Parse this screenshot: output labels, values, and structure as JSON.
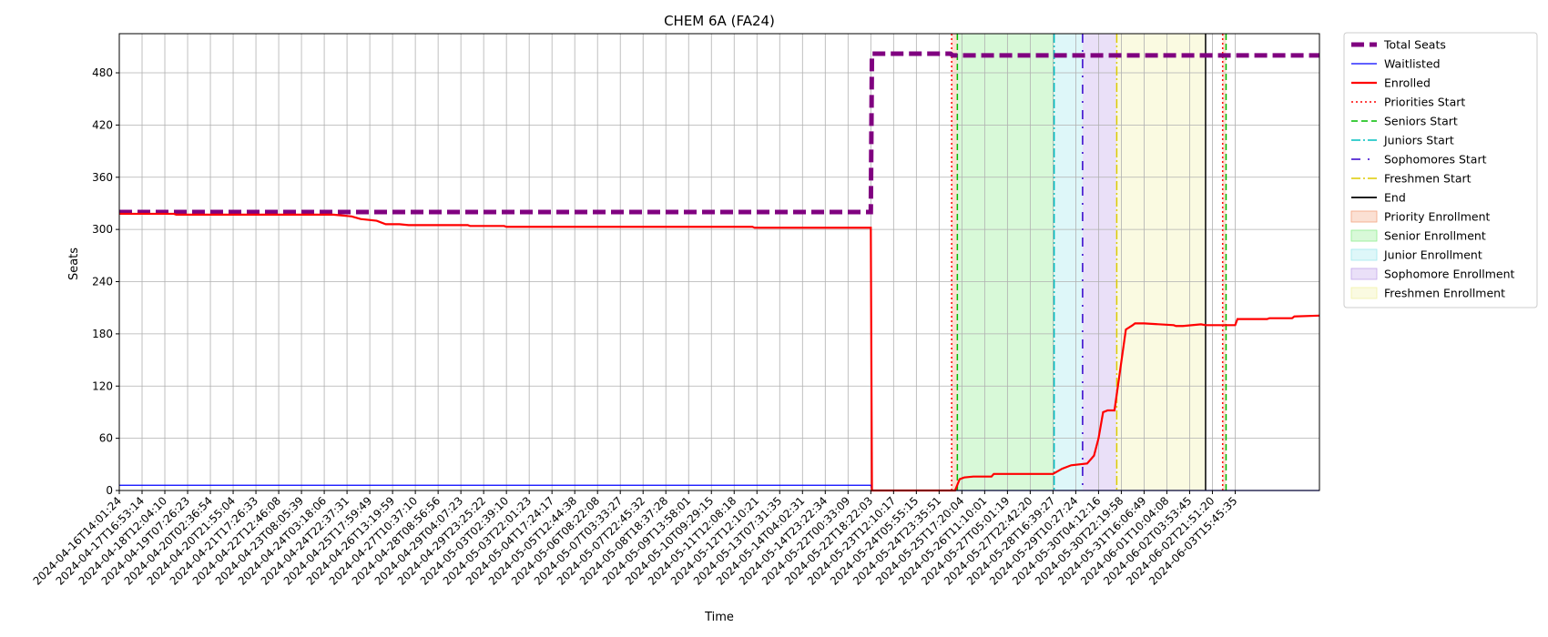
{
  "chart_data": {
    "type": "line",
    "title": "CHEM 6A (FA24)",
    "xlabel": "Time",
    "ylabel": "Seats",
    "ylim": [
      0,
      525
    ],
    "yticks": [
      0,
      60,
      120,
      180,
      240,
      300,
      360,
      420,
      480
    ],
    "grid": true,
    "legend_position": "outside-right",
    "x_tick_labels": [
      "2024-04-16T14:01:24",
      "2024-04-17T16:53:14",
      "2024-04-18T12:04:10",
      "2024-04-19T07:26:23",
      "2024-04-20T02:36:54",
      "2024-04-20T21:55:04",
      "2024-04-21T17:26:33",
      "2024-04-22T12:46:08",
      "2024-04-23T08:05:39",
      "2024-04-24T03:18:06",
      "2024-04-24T22:37:31",
      "2024-04-25T17:59:49",
      "2024-04-26T13:19:59",
      "2024-04-27T10:37:10",
      "2024-04-28T08:56:56",
      "2024-04-29T04:07:23",
      "2024-04-29T23:25:22",
      "2024-05-03T02:39:10",
      "2024-05-03T22:01:23",
      "2024-05-04T17:24:17",
      "2024-05-05T12:44:38",
      "2024-05-06T08:22:08",
      "2024-05-07T03:33:27",
      "2024-05-07T22:45:32",
      "2024-05-08T18:37:28",
      "2024-05-09T13:58:01",
      "2024-05-10T09:29:15",
      "2024-05-11T12:08:18",
      "2024-05-12T12:10:21",
      "2024-05-13T07:31:35",
      "2024-05-14T04:02:31",
      "2024-05-14T23:22:34",
      "2024-05-22T00:33:09",
      "2024-05-22T18:22:03",
      "2024-05-23T12:10:17",
      "2024-05-24T05:55:15",
      "2024-05-24T23:35:51",
      "2024-05-25T17:20:04",
      "2024-05-26T11:10:01",
      "2024-05-27T05:01:19",
      "2024-05-27T22:42:20",
      "2024-05-28T16:39:27",
      "2024-05-29T10:27:24",
      "2024-05-30T04:12:16",
      "2024-05-30T22:19:58",
      "2024-05-31T16:06:49",
      "2024-06-01T10:04:08",
      "2024-06-02T03:53:45",
      "2024-06-02T21:51:20",
      "2024-06-03T15:45:35"
    ],
    "x_index_range": [
      0,
      52.7
    ],
    "series": [
      {
        "name": "Total Seats",
        "color": "#800080",
        "style": "dashed-thick",
        "x": [
          0,
          33.0,
          33.05,
          36.5,
          36.6,
          52.7
        ],
        "y": [
          320,
          320,
          502,
          502,
          500,
          500
        ]
      },
      {
        "name": "Waitlisted",
        "color": "#0000ff",
        "style": "solid-thin",
        "x": [
          0,
          33.0,
          33.05,
          52.7
        ],
        "y": [
          6,
          6,
          0,
          0
        ]
      },
      {
        "name": "Enrolled",
        "color": "#ff0000",
        "style": "solid-thick",
        "x": [
          0,
          2.4,
          2.5,
          9.4,
          10.2,
          10.6,
          11.3,
          11.7,
          12.3,
          12.7,
          15.3,
          15.4,
          16.9,
          17.0,
          27.8,
          27.9,
          33.0,
          33.05,
          36.7,
          36.9,
          37.1,
          37.5,
          38.3,
          38.4,
          41.0,
          41.4,
          41.8,
          42.5,
          42.8,
          43.0,
          43.2,
          43.4,
          43.7,
          44.2,
          44.5,
          44.6,
          45.0,
          46.3,
          46.4,
          46.7,
          47.5,
          47.7,
          47.9,
          49.0,
          49.1,
          50.4,
          50.5,
          51.5,
          51.6,
          52.7
        ],
        "y": [
          318,
          318,
          317,
          317,
          315,
          312,
          310,
          306,
          306,
          305,
          305,
          304,
          304,
          303,
          303,
          302,
          302,
          0,
          0,
          13,
          15,
          16,
          16,
          19,
          19,
          25,
          29,
          31,
          40,
          60,
          90,
          92,
          92,
          185,
          190,
          192,
          192,
          190,
          189,
          189,
          191,
          190,
          190,
          190,
          197,
          197,
          198,
          198,
          200,
          201
        ]
      }
    ],
    "markers": [
      {
        "name": "Priorities Start",
        "x": 36.55,
        "color": "#ff0000",
        "style": "dotted"
      },
      {
        "name": "Seniors Start",
        "x": 36.8,
        "color": "#00bb00",
        "style": "dashed"
      },
      {
        "name": "Juniors Start",
        "x": 41.05,
        "color": "#00bfbf",
        "style": "dashdot"
      },
      {
        "name": "Sophomores Start",
        "x": 42.3,
        "color": "#3300cc",
        "style": "sparse-dashdot"
      },
      {
        "name": "Freshmen Start",
        "x": 43.8,
        "color": "#ddcc00",
        "style": "dashdot"
      },
      {
        "name": "End",
        "x": 47.7,
        "color": "#000000",
        "style": "solid"
      },
      {
        "name": "Priorities Start",
        "x": 48.45,
        "color": "#ff0000",
        "style": "dotted",
        "legend": false
      },
      {
        "name": "Seniors Start",
        "x": 48.6,
        "color": "#00bb00",
        "style": "dashed",
        "legend": false
      }
    ],
    "spans": [
      {
        "name": "Priority Enrollment",
        "x0": 36.55,
        "x1": 36.8,
        "color": "#f4a582"
      },
      {
        "name": "Senior Enrollment",
        "x0": 36.8,
        "x1": 41.05,
        "color": "#90ee90"
      },
      {
        "name": "Junior Enrollment",
        "x0": 41.05,
        "x1": 42.3,
        "color": "#a0e8ee"
      },
      {
        "name": "Sophomore Enrollment",
        "x0": 42.3,
        "x1": 43.8,
        "color": "#c3a7ea"
      },
      {
        "name": "Freshmen Enrollment",
        "x0": 43.8,
        "x1": 47.7,
        "color": "#f2f2a8"
      },
      {
        "name": "",
        "x0": 48.45,
        "x1": 48.6,
        "color": "#f4a582",
        "legend": false
      }
    ],
    "legend": [
      {
        "label": "Total Seats",
        "kind": "line",
        "color": "#800080",
        "style": "dashed-thick"
      },
      {
        "label": "Waitlisted",
        "kind": "line",
        "color": "#0000ff",
        "style": "solid-thin"
      },
      {
        "label": "Enrolled",
        "kind": "line",
        "color": "#ff0000",
        "style": "solid-thick"
      },
      {
        "label": "Priorities Start",
        "kind": "line",
        "color": "#ff0000",
        "style": "dotted"
      },
      {
        "label": "Seniors Start",
        "kind": "line",
        "color": "#00bb00",
        "style": "dashed"
      },
      {
        "label": "Juniors Start",
        "kind": "line",
        "color": "#00bfbf",
        "style": "dashdot"
      },
      {
        "label": "Sophomores Start",
        "kind": "line",
        "color": "#3300cc",
        "style": "sparse-dashdot"
      },
      {
        "label": "Freshmen Start",
        "kind": "line",
        "color": "#ddcc00",
        "style": "dashdot"
      },
      {
        "label": "End",
        "kind": "line",
        "color": "#000000",
        "style": "solid"
      },
      {
        "label": "Priority Enrollment",
        "kind": "patch",
        "color": "#f4a582"
      },
      {
        "label": "Senior Enrollment",
        "kind": "patch",
        "color": "#90ee90"
      },
      {
        "label": "Junior Enrollment",
        "kind": "patch",
        "color": "#a0e8ee"
      },
      {
        "label": "Sophomore Enrollment",
        "kind": "patch",
        "color": "#c3a7ea"
      },
      {
        "label": "Freshmen Enrollment",
        "kind": "patch",
        "color": "#f2f2a8"
      }
    ]
  }
}
